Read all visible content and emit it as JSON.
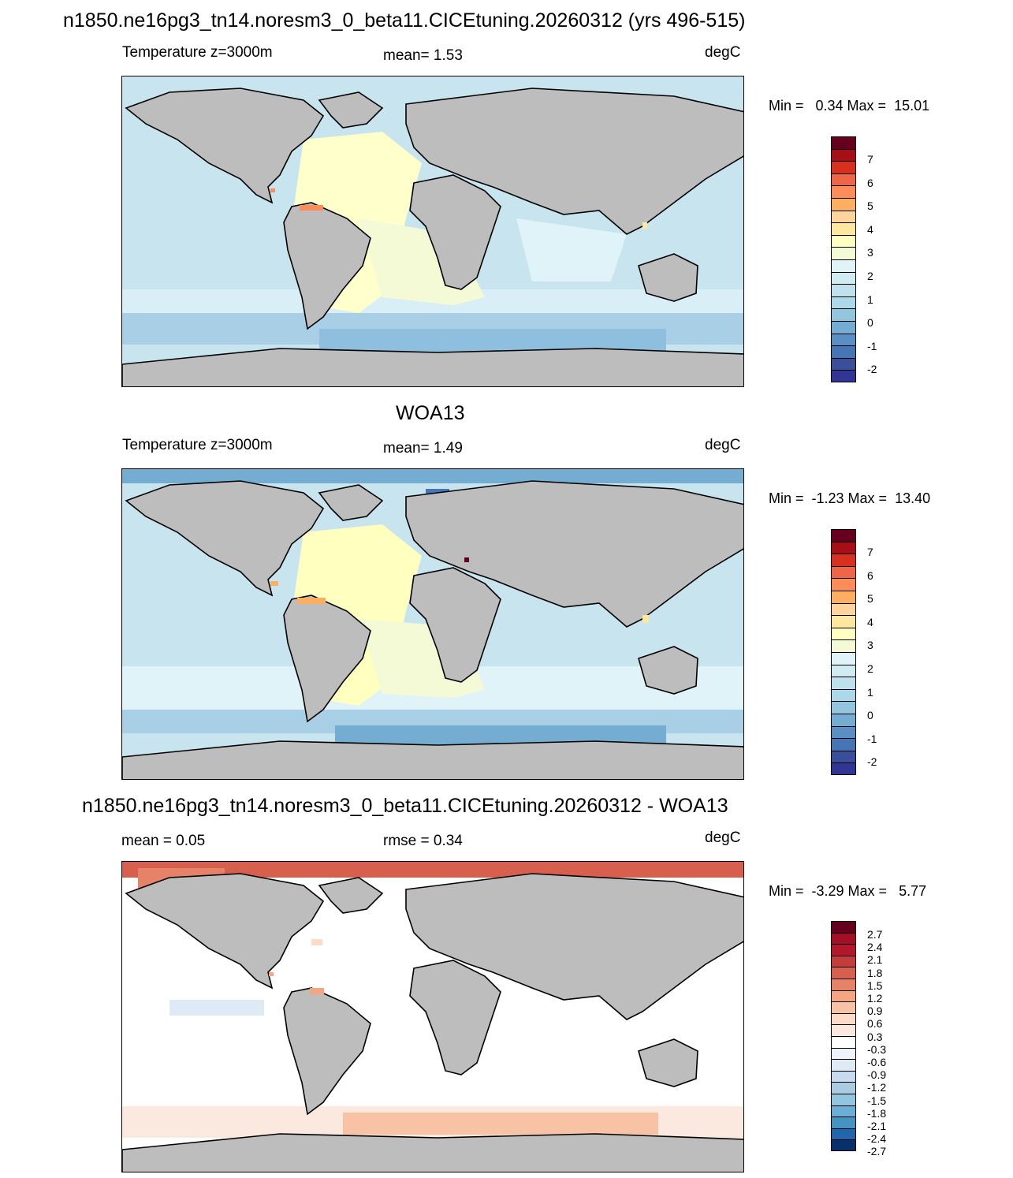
{
  "panel1": {
    "title": "n1850.ne16pg3_tn14.noresm3_0_beta11.CICEtuning.20260312 (yrs 496-515)",
    "left_label": "Temperature z=3000m",
    "mid_label": "mean=   1.53",
    "units": "degC",
    "minmax": "Min =   0.34 Max =  15.01"
  },
  "panel2": {
    "title": "WOA13",
    "left_label": "Temperature z=3000m",
    "mid_label": "mean=   1.49",
    "units": "degC",
    "minmax": "Min =  -1.23 Max =  13.40"
  },
  "panel3": {
    "title": "n1850.ne16pg3_tn14.noresm3_0_beta11.CICEtuning.20260312 - WOA13",
    "left_label": "mean =   0.05",
    "mid_label": "rmse =   0.34",
    "units": "degC",
    "minmax": "Min =  -3.29 Max =   5.77"
  },
  "temp_colorbar": {
    "labels": [
      "7",
      "6",
      "5",
      "4",
      "3",
      "2",
      "1",
      "0",
      "-1",
      "-2"
    ],
    "colors": [
      "#67001f",
      "#a50f15",
      "#d7301f",
      "#ef6548",
      "#fc8d59",
      "#fdae61",
      "#fdd49e",
      "#fee8a0",
      "#ffffbf",
      "#f4f9d6",
      "#e0f3f8",
      "#d1ebf2",
      "#bfe1ed",
      "#abd9e9",
      "#92c5de",
      "#74add1",
      "#5b8fc4",
      "#4575b4",
      "#3a4f9a",
      "#313695"
    ]
  },
  "diff_colorbar": {
    "labels": [
      "2.7",
      "2.4",
      "2.1",
      "1.8",
      "1.5",
      "1.2",
      "0.9",
      "0.6",
      "0.3",
      "-0.3",
      "-0.6",
      "-0.9",
      "-1.2",
      "-1.5",
      "-1.8",
      "-2.1",
      "-2.4",
      "-2.7"
    ],
    "colors": [
      "#67001f",
      "#a50f26",
      "#b2182b",
      "#c43c3c",
      "#d6604d",
      "#e58268",
      "#f4a582",
      "#f8c2a5",
      "#fddbc7",
      "#fbe9e0",
      "#ffffff",
      "#eef4f9",
      "#deebf7",
      "#c6dbef",
      "#a9cce3",
      "#92c5de",
      "#6baed6",
      "#4393c3",
      "#2166ac",
      "#08306b"
    ]
  },
  "map_colors": {
    "land": "#bdbdbd",
    "coast": "#000000"
  }
}
